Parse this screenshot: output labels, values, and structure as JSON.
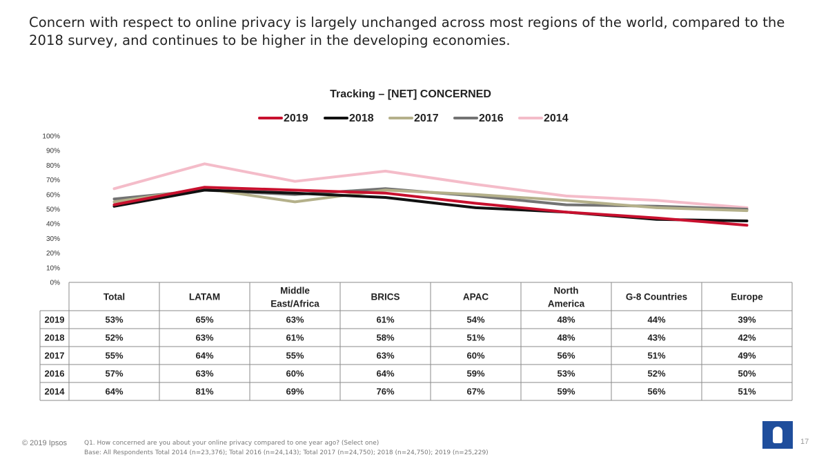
{
  "headline": "Concern with respect to online privacy is largely unchanged across most regions of the world, compared to the 2018 survey, and continues to be higher in the developing economies.",
  "chart_data": {
    "type": "line",
    "title": "Tracking – [NET] CONCERNED",
    "categories": [
      "Total",
      "LATAM",
      "Middle East/Africa",
      "BRICS",
      "APAC",
      "North America",
      "G-8 Countries",
      "Europe"
    ],
    "category_lines": [
      [
        "Total"
      ],
      [
        "LATAM"
      ],
      [
        "Middle",
        "East/Africa"
      ],
      [
        "BRICS"
      ],
      [
        "APAC"
      ],
      [
        "North",
        "America"
      ],
      [
        "G-8 Countries"
      ],
      [
        "Europe"
      ]
    ],
    "ylim": [
      0,
      100
    ],
    "yticks": [
      0,
      10,
      20,
      30,
      40,
      50,
      60,
      70,
      80,
      90,
      100
    ],
    "ytick_labels": [
      "0%",
      "10%",
      "20%",
      "30%",
      "40%",
      "50%",
      "60%",
      "70%",
      "80%",
      "90%",
      "100%"
    ],
    "legend_position": "top-center",
    "series": [
      {
        "name": "2019",
        "color": "#c8102e",
        "values": [
          53,
          65,
          63,
          61,
          54,
          48,
          44,
          39
        ]
      },
      {
        "name": "2018",
        "color": "#111111",
        "values": [
          52,
          63,
          61,
          58,
          51,
          48,
          43,
          42
        ]
      },
      {
        "name": "2017",
        "color": "#b4b08a",
        "values": [
          55,
          64,
          55,
          63,
          60,
          56,
          51,
          49
        ]
      },
      {
        "name": "2016",
        "color": "#737373",
        "values": [
          57,
          63,
          60,
          64,
          59,
          53,
          52,
          50
        ]
      },
      {
        "name": "2014",
        "color": "#f4bcc9",
        "values": [
          64,
          81,
          69,
          76,
          67,
          59,
          56,
          51
        ]
      }
    ],
    "table_rows": [
      {
        "label": "2019",
        "cells": [
          "53%",
          "65%",
          "63%",
          "61%",
          "54%",
          "48%",
          "44%",
          "39%"
        ]
      },
      {
        "label": "2018",
        "cells": [
          "52%",
          "63%",
          "61%",
          "58%",
          "51%",
          "48%",
          "43%",
          "42%"
        ]
      },
      {
        "label": "2017",
        "cells": [
          "55%",
          "64%",
          "55%",
          "63%",
          "60%",
          "56%",
          "51%",
          "49%"
        ]
      },
      {
        "label": "2016",
        "cells": [
          "57%",
          "63%",
          "60%",
          "64%",
          "59%",
          "53%",
          "52%",
          "50%"
        ]
      },
      {
        "label": "2014",
        "cells": [
          "64%",
          "81%",
          "69%",
          "76%",
          "67%",
          "59%",
          "56%",
          "51%"
        ]
      }
    ]
  },
  "footer": {
    "copyright": "© 2019 Ipsos",
    "question": "Q1. How concerned are you about your online privacy compared to one year ago? (Select one)",
    "base": "Base: All Respondents Total  2014 (n=23,376); Total 2016 (n=24,143); Total 2017 (n=24,750); 2018 (n=24,750); 2019 (n=25,229)",
    "page_number": "17"
  },
  "logo_color": "#1f4e9c"
}
